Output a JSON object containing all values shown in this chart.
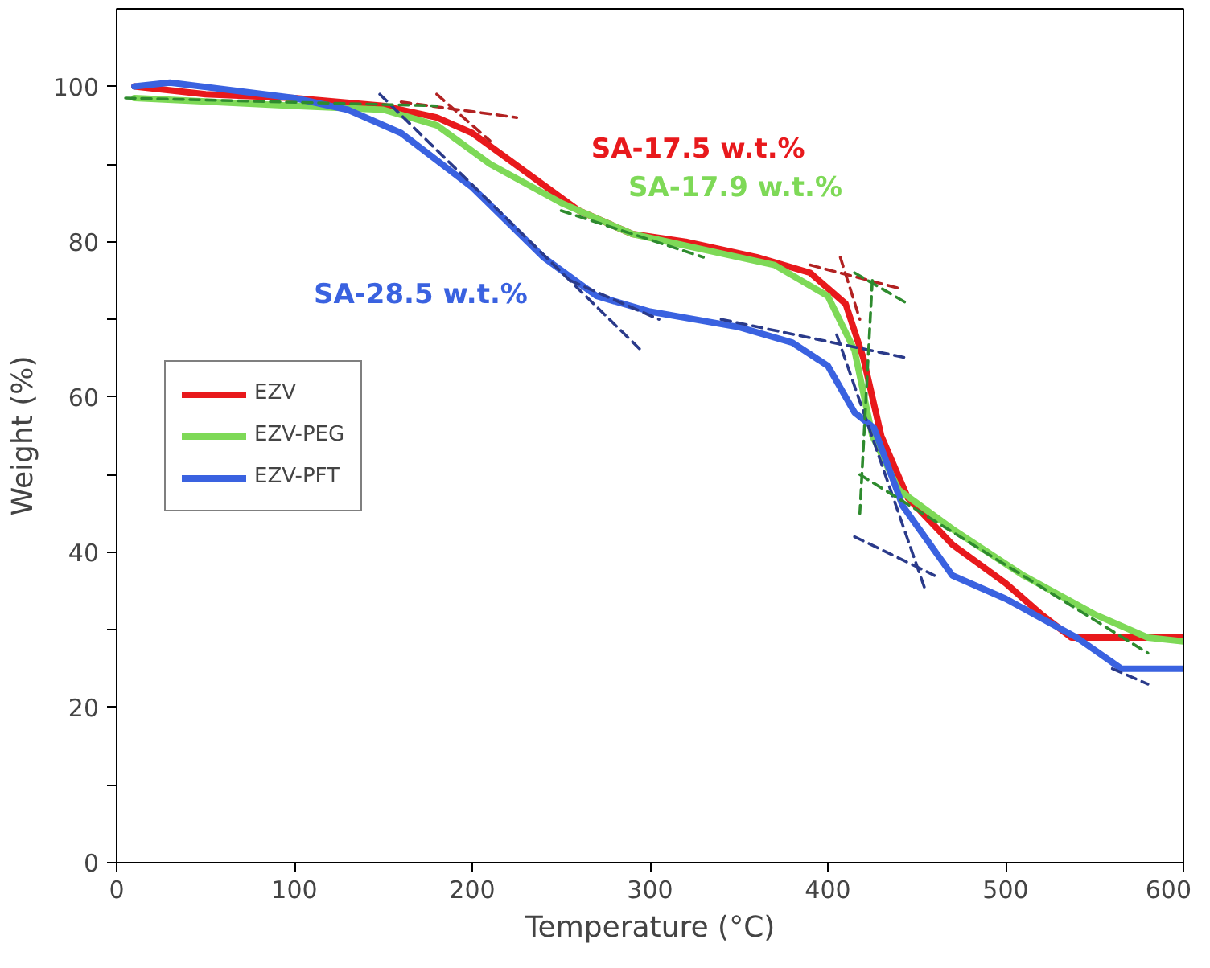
{
  "chart_data": {
    "type": "line",
    "xlabel": "Temperature (°C)",
    "ylabel": "Weight (%)",
    "xlim": [
      0,
      600
    ],
    "ylim": [
      0,
      110
    ],
    "xticks": [
      0,
      100,
      200,
      300,
      400,
      500,
      600
    ],
    "yticks": [
      0,
      {
        "value": 10,
        "label": null
      },
      20,
      {
        "value": 30,
        "label": null
      },
      40,
      {
        "value": 50,
        "label": null
      },
      60,
      {
        "value": 70,
        "label": null
      },
      80,
      {
        "value": 90,
        "label": null
      },
      100
    ],
    "grid": false,
    "legend": "left",
    "marker": "none",
    "line_style": "solid",
    "series": [
      {
        "name": "EZV",
        "color": "#e8191c",
        "x": [
          10,
          50,
          100,
          150,
          180,
          200,
          230,
          260,
          290,
          320,
          360,
          390,
          410,
          420,
          430,
          445,
          470,
          500,
          520,
          537,
          560,
          600
        ],
        "values": [
          100,
          99,
          98.5,
          97.5,
          96,
          94,
          89,
          84,
          81,
          80,
          78,
          76,
          72,
          65,
          55,
          47,
          41,
          36,
          32,
          29,
          29,
          29
        ]
      },
      {
        "name": "EZV-PEG",
        "color": "#7ed957",
        "x": [
          10,
          100,
          150,
          180,
          210,
          250,
          290,
          330,
          370,
          400,
          415,
          425,
          440,
          470,
          510,
          550,
          580,
          600
        ],
        "values": [
          98.5,
          97.5,
          97,
          95,
          90,
          85,
          81,
          79,
          77,
          73,
          66,
          55,
          48,
          43,
          37,
          32,
          29,
          28.5
        ]
      },
      {
        "name": "EZV-PFT",
        "color": "#3a62e0",
        "x": [
          10,
          30,
          100,
          130,
          160,
          200,
          240,
          270,
          300,
          350,
          380,
          400,
          415,
          426,
          442,
          470,
          500,
          540,
          565,
          600
        ],
        "values": [
          100,
          100.5,
          98.5,
          97,
          94,
          87,
          78,
          73,
          71,
          69,
          67,
          64,
          58,
          56,
          46,
          37,
          34,
          29,
          25,
          25
        ]
      },
      {
        "type": "line",
        "line_style": "dashed",
        "color": "#2a3a8a",
        "x": [
          148,
          295
        ],
        "values": [
          99,
          66
        ]
      },
      {
        "type": "line",
        "line_style": "dashed",
        "color": "#2a3a8a",
        "x": [
          255,
          305
        ],
        "values": [
          75,
          70
        ]
      },
      {
        "type": "line",
        "line_style": "dashed",
        "color": "#2a3a8a",
        "x": [
          340,
          445
        ],
        "values": [
          70,
          65
        ]
      },
      {
        "type": "line",
        "line_style": "dashed",
        "color": "#2a3a8a",
        "x": [
          405,
          455
        ],
        "values": [
          68,
          35
        ]
      },
      {
        "type": "line",
        "line_style": "dashed",
        "color": "#2a3a8a",
        "x": [
          415,
          460
        ],
        "values": [
          42,
          37
        ]
      },
      {
        "type": "line",
        "line_style": "dashed",
        "color": "#2a3a8a",
        "x": [
          560,
          580
        ],
        "values": [
          25,
          23
        ]
      },
      {
        "type": "line",
        "line_style": "dashed",
        "color": "#b22222",
        "x": [
          160,
          225
        ],
        "values": [
          98,
          96
        ]
      },
      {
        "type": "line",
        "line_style": "dashed",
        "color": "#b22222",
        "x": [
          180,
          210
        ],
        "values": [
          99,
          93
        ]
      },
      {
        "type": "line",
        "line_style": "dashed",
        "color": "#b22222",
        "x": [
          390,
          440
        ],
        "values": [
          77,
          74
        ]
      },
      {
        "type": "line",
        "line_style": "dashed",
        "color": "#b22222",
        "x": [
          407,
          418
        ],
        "values": [
          78,
          70
        ]
      },
      {
        "type": "line",
        "line_style": "dashed",
        "color": "#2e8b2e",
        "x": [
          5,
          180
        ],
        "values": [
          98.5,
          97.5
        ]
      },
      {
        "type": "line",
        "line_style": "dashed",
        "color": "#2e8b2e",
        "x": [
          250,
          330
        ],
        "values": [
          84,
          78
        ]
      },
      {
        "type": "line",
        "line_style": "dashed",
        "color": "#2e8b2e",
        "x": [
          415,
          445
        ],
        "values": [
          76,
          72
        ]
      },
      {
        "type": "line",
        "line_style": "dashed",
        "color": "#2e8b2e",
        "x": [
          425,
          418
        ],
        "values": [
          75,
          45
        ]
      },
      {
        "type": "line",
        "line_style": "dashed",
        "color": "#2e8b2e",
        "x": [
          418,
          580
        ],
        "values": [
          50,
          27
        ]
      }
    ],
    "annotations": [
      "SA-17.5 w.t.%",
      "SA-17.9 w.t.%",
      "SA-28.5 w.t.%"
    ]
  }
}
